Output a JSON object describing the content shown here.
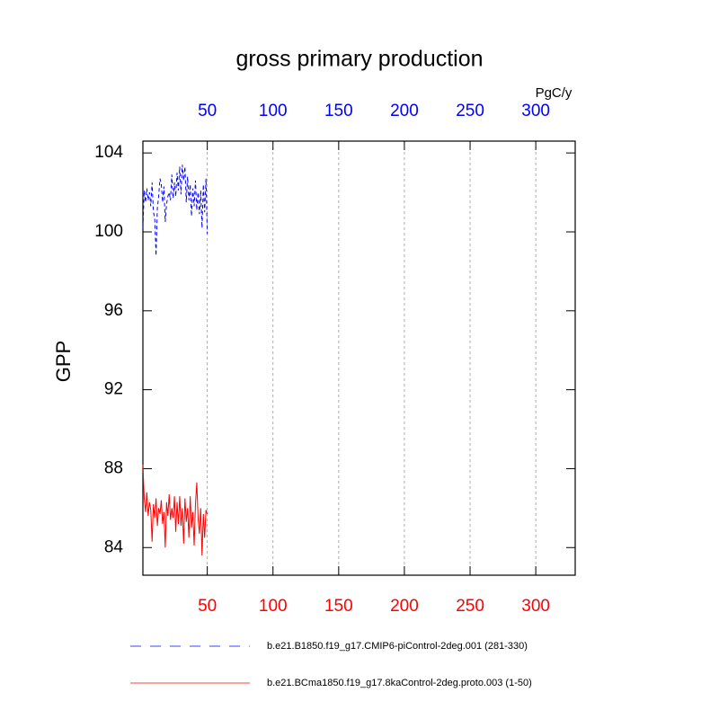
{
  "chart_data": {
    "type": "line",
    "title": "gross primary production",
    "ylabel": "GPP",
    "x2label": "PgC/y",
    "x": [
      1,
      2,
      3,
      4,
      5,
      6,
      7,
      8,
      9,
      10,
      11,
      12,
      13,
      14,
      15,
      16,
      17,
      18,
      19,
      20,
      21,
      22,
      23,
      24,
      25,
      26,
      27,
      28,
      29,
      30,
      31,
      32,
      33,
      34,
      35,
      36,
      37,
      38,
      39,
      40,
      41,
      42,
      43,
      44,
      45,
      46,
      47,
      48,
      49,
      50
    ],
    "series": [
      {
        "name": "b.e21.B1850.f19_g17.CMIP6-piControl-2deg.001 (281-330)",
        "color": "#0000ff",
        "dash": true,
        "axis": "top",
        "values": [
          100.2,
          102.1,
          101.5,
          102.2,
          101.6,
          102.0,
          101.3,
          102.5,
          101.0,
          100.7,
          98.8,
          101.2,
          101.8,
          102.7,
          102.4,
          101.5,
          102.3,
          100.5,
          101.4,
          101.8,
          102.0,
          101.6,
          102.9,
          101.7,
          102.5,
          101.8,
          103.0,
          102.1,
          103.3,
          101.9,
          103.4,
          102.6,
          103.3,
          101.5,
          102.8,
          101.6,
          102.4,
          100.8,
          102.2,
          101.3,
          102.6,
          101.1,
          102.0,
          100.9,
          102.1,
          100.2,
          102.4,
          101.0,
          102.7,
          99.9
        ]
      },
      {
        "name": "b.e21.BCma1850.f19_g17.8kaControl-2deg.proto.003 (1-50)",
        "color": "#ff0000",
        "dash": false,
        "axis": "bottom",
        "values": [
          88.2,
          86.5,
          85.8,
          86.8,
          85.6,
          86.3,
          85.9,
          84.3,
          86.2,
          85.5,
          86.5,
          85.1,
          86.0,
          85.7,
          86.4,
          85.2,
          85.8,
          84.0,
          86.3,
          85.6,
          86.7,
          85.4,
          86.0,
          85.5,
          86.6,
          84.8,
          86.3,
          85.2,
          86.6,
          85.1,
          86.0,
          84.2,
          86.5,
          85.3,
          86.0,
          84.5,
          86.6,
          85.0,
          85.8,
          84.1,
          86.2,
          87.3,
          85.5,
          84.7,
          86.0,
          83.6,
          85.7,
          84.5,
          85.9,
          85.7
        ]
      }
    ],
    "xlim": [
      1,
      330
    ],
    "xticks": [
      50,
      100,
      150,
      200,
      250,
      300
    ],
    "ylim": [
      82.6,
      104.6
    ],
    "yticks": [
      84,
      88,
      92,
      96,
      100,
      104
    ],
    "grid": true
  }
}
